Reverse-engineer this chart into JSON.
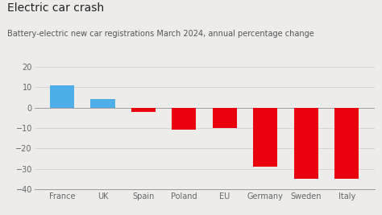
{
  "title": "Electric car crash",
  "subtitle": "Battery-electric new car registrations March 2024, annual percentage change",
  "categories": [
    "France",
    "UK",
    "Spain",
    "Poland",
    "EU",
    "Germany",
    "Sweden",
    "Italy"
  ],
  "values": [
    11,
    4,
    -2,
    -11,
    -10,
    -29,
    -35,
    -35
  ],
  "colors": [
    "#4DAEE8",
    "#4DAEE8",
    "#E8000D",
    "#E8000D",
    "#E8000D",
    "#E8000D",
    "#E8000D",
    "#E8000D"
  ],
  "ylim": [
    -40,
    20
  ],
  "yticks": [
    -40,
    -30,
    -20,
    -10,
    0,
    10,
    20
  ],
  "background_color": "#edecea",
  "title_fontsize": 10,
  "subtitle_fontsize": 7,
  "tick_fontsize": 7,
  "bar_width": 0.6
}
